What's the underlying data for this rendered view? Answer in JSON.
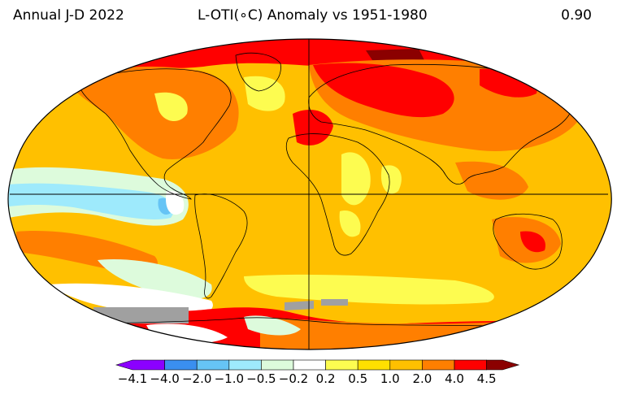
{
  "header": {
    "left": "Annual J-D 2022",
    "center": "L-OTI(∘C) Anomaly vs 1951-1980",
    "right": "0.90"
  },
  "legend": {
    "colors": [
      "#8b00ff",
      "#3a8ff0",
      "#66c4f5",
      "#9eeafc",
      "#ddfbdc",
      "#ffffff",
      "#fdfc50",
      "#ffe000",
      "#ffc000",
      "#ff7f00",
      "#ff0000",
      "#8b0000"
    ],
    "labels": [
      "−4.1",
      "−4.0",
      "−2.0",
      "−1.0",
      "−0.5",
      "−0.2",
      "0.2",
      "0.5",
      "1.0",
      "2.0",
      "4.0",
      "4.5"
    ]
  },
  "map": {
    "palette": {
      "ocean_base": "#ffc000",
      "warm": "#ff7f00",
      "hot": "#ff0000",
      "extreme": "#8b0000",
      "mild": "#fdfc50",
      "neutral": "#ffffff",
      "cool": "#ddfbdc",
      "cold": "#9eeafc",
      "colder": "#66c4f5",
      "missing": "#a0a0a0"
    }
  }
}
